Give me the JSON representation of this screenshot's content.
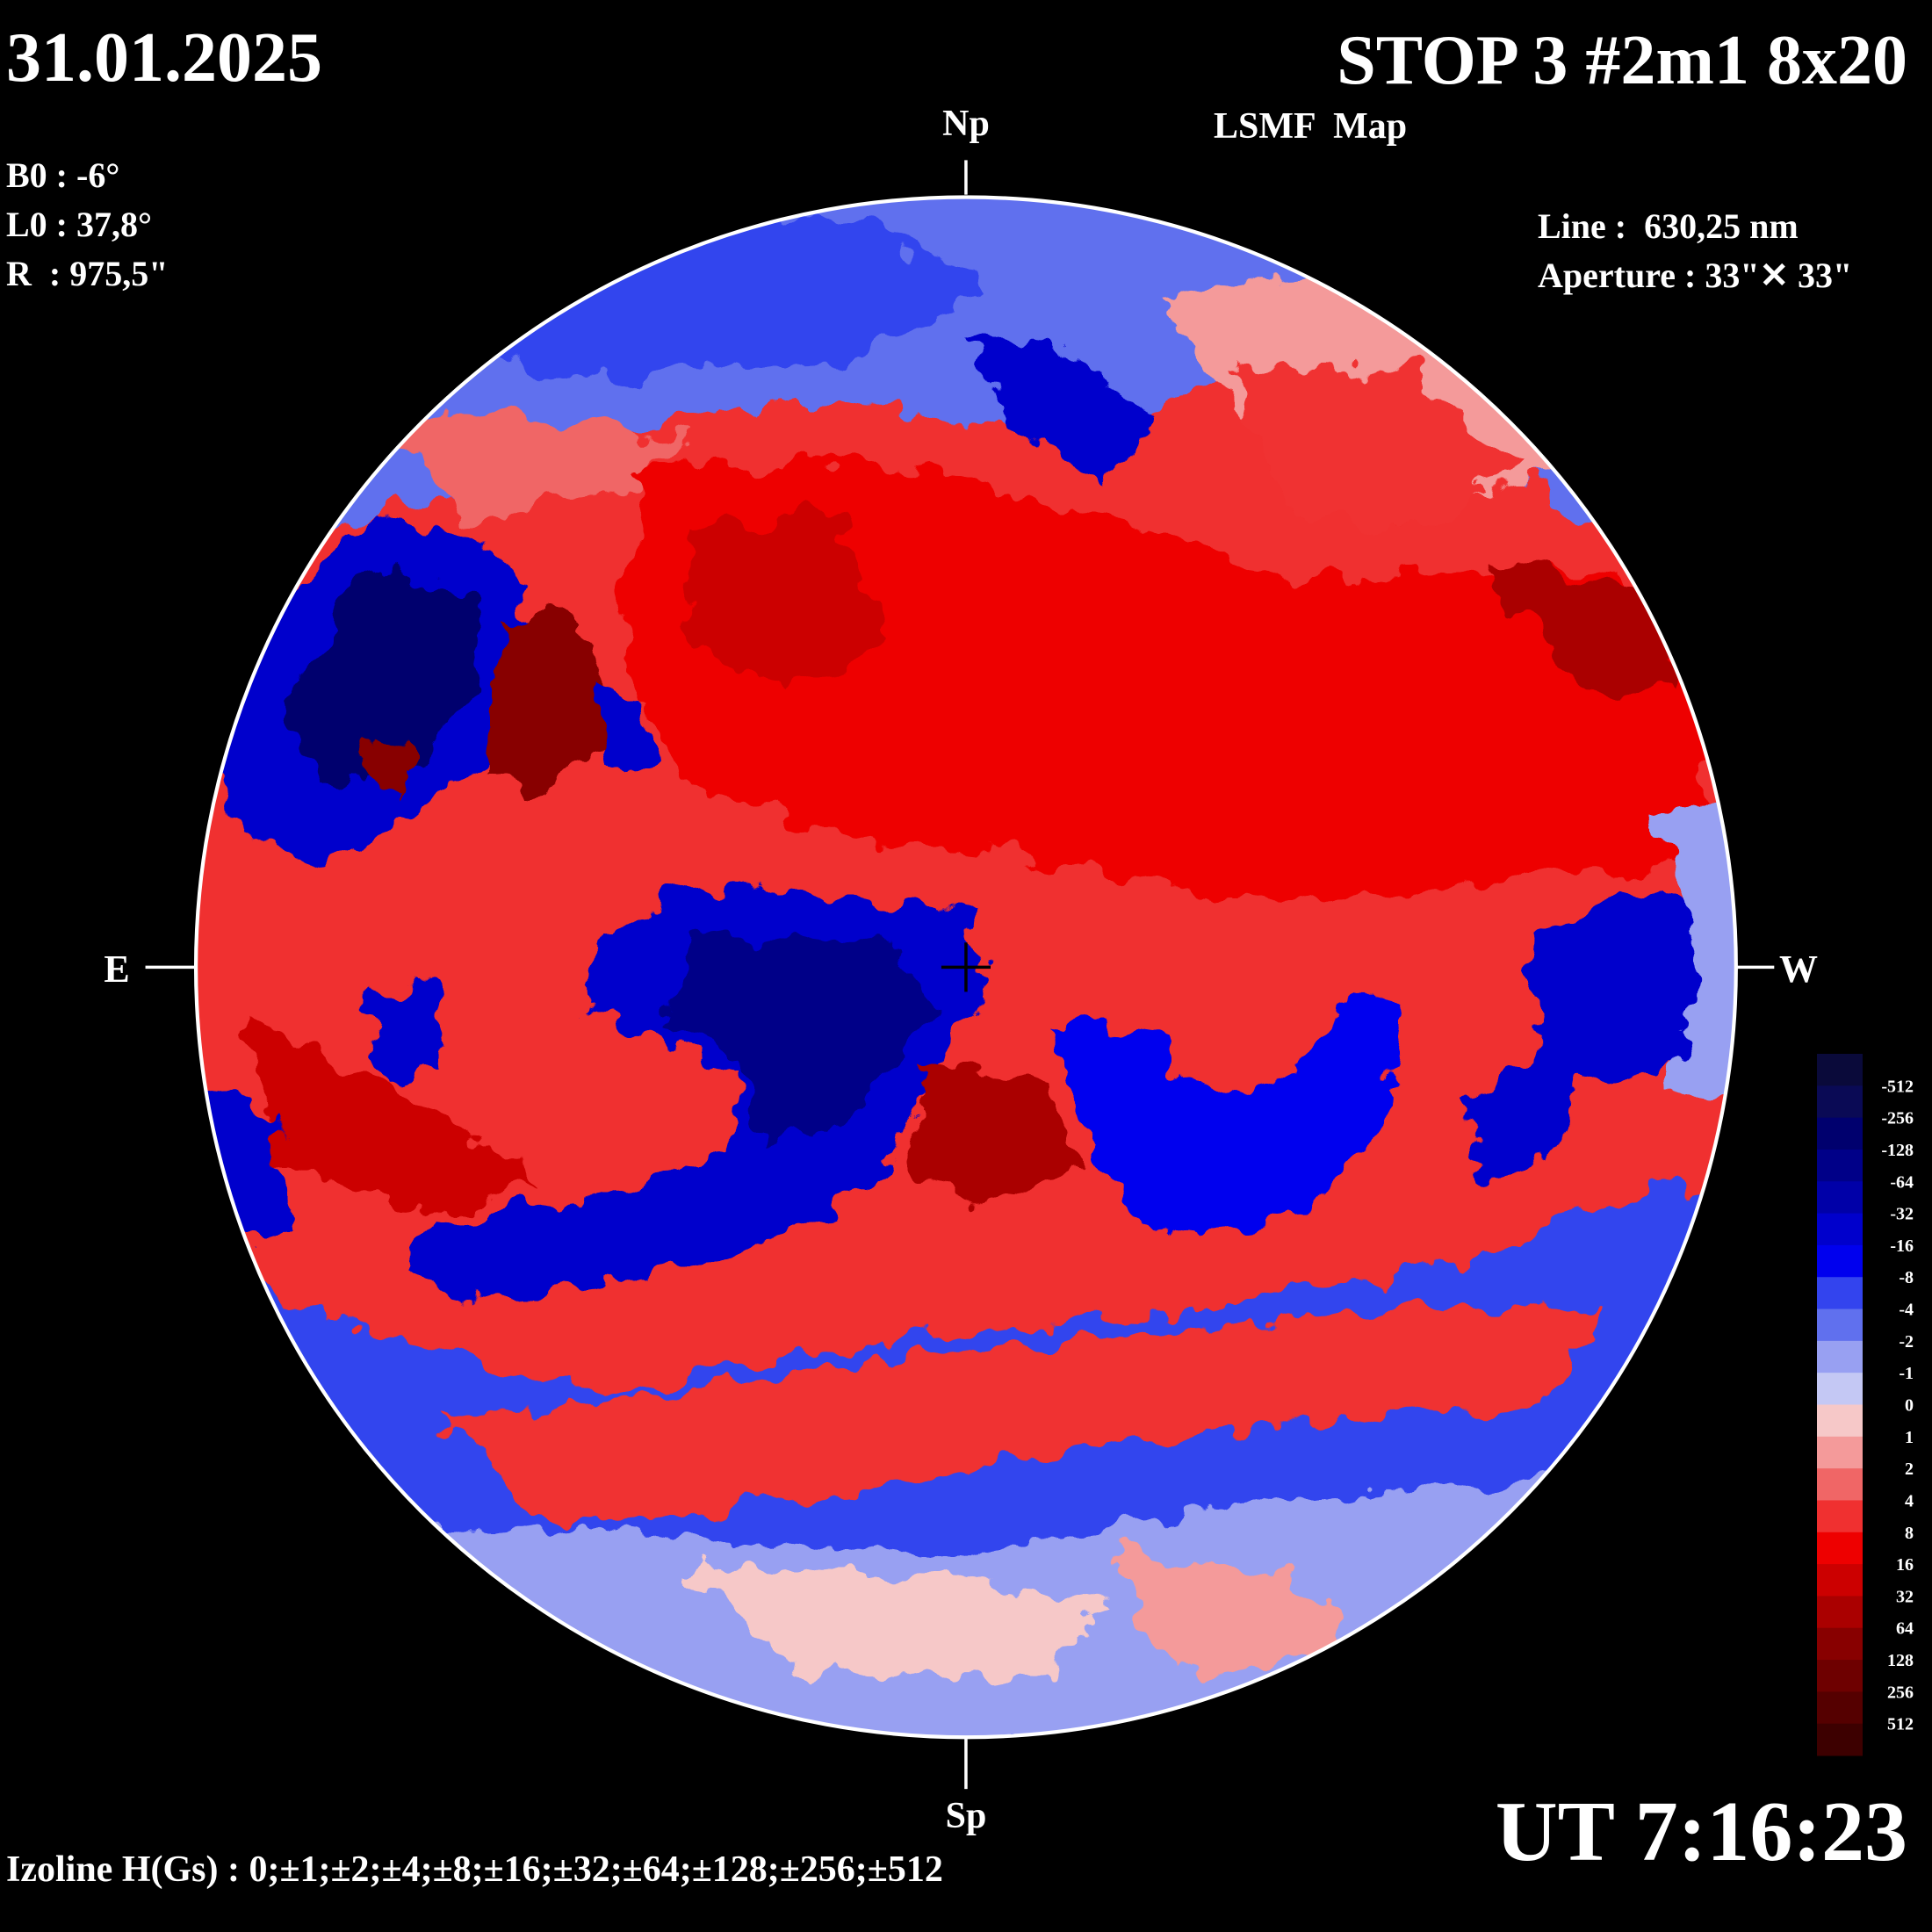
{
  "header": {
    "date": "31.01.2025",
    "title": "STOP 3 #2m1 8x20",
    "subtitle": "LSMF  Map",
    "params": [
      "B0 : -6°",
      "L0 : 37,8°",
      "R  : 975,5\""
    ],
    "line": "Line :  630,25 nm",
    "aperture": "Aperture : 33\"✕ 33\"",
    "time": "UT 7:16:23",
    "isolines": "Izoline H(Gs) : 0;±1;±2;±4;±8;±16;±32;±64;±128;±256;±512"
  },
  "compass": {
    "north": "Np",
    "south": "Sp",
    "east": "E",
    "west": "W"
  },
  "legend": {
    "levels": [
      -512,
      -256,
      -128,
      -64,
      -32,
      -16,
      -8,
      -4,
      -2,
      -1,
      0,
      1,
      2,
      4,
      8,
      16,
      32,
      64,
      128,
      256,
      512
    ],
    "colors": [
      "#0a0a3a",
      "#0a0a55",
      "#00006e",
      "#000088",
      "#0000a8",
      "#0000cc",
      "#0000ee",
      "#3344ee",
      "#6070ee",
      "#98a0f2",
      "#c4c8f4",
      "#f6c8c8",
      "#f49a9a",
      "#f06666",
      "#f03030",
      "#ee0000",
      "#cc0000",
      "#aa0000",
      "#880000",
      "#6e0000",
      "#550000",
      "#3d0000"
    ]
  }
}
